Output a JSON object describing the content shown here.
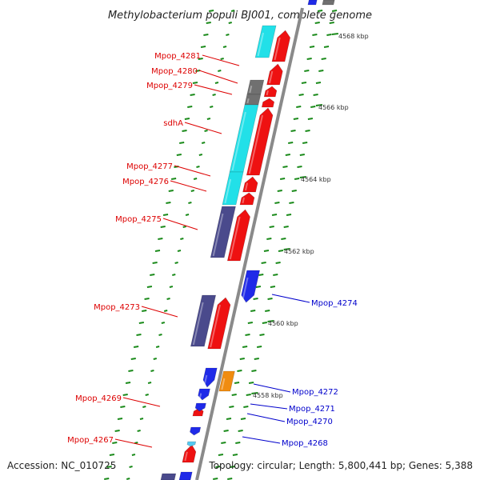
{
  "title": "Methylobacterium populi BJ001, complete genome",
  "footer": {
    "accession": "Accession: NC_010725",
    "topology": "Topology: circular; Length: 5,800,441 bp; Genes: 5,388"
  },
  "colors": {
    "forward_cds": "#ee1111",
    "reverse_cds": "#4a4a8c",
    "cyan": "#22e0e8",
    "gray": "#707070",
    "blue": "#1f2ae8",
    "orange": "#f08c10",
    "light_blue": "#55c8f0",
    "backbone": "#8a8a8a",
    "tick": "#1a8a1a",
    "label_red": "#dd0000",
    "label_blue": "#0000cc"
  },
  "scale_labels": [
    {
      "text": "4568 kbp"
    },
    {
      "text": "4566 kbp"
    },
    {
      "text": "4564 kbp"
    },
    {
      "text": "4562 kbp"
    },
    {
      "text": "4560 kbp"
    },
    {
      "text": "4558 kbp"
    }
  ],
  "gene_labels_left": [
    {
      "text": "Mpop_4281"
    },
    {
      "text": "Mpop_4280"
    },
    {
      "text": "Mpop_4279"
    },
    {
      "text": "sdhA"
    },
    {
      "text": "Mpop_4277"
    },
    {
      "text": "Mpop_4276"
    },
    {
      "text": "Mpop_4275"
    },
    {
      "text": "Mpop_4273"
    },
    {
      "text": "Mpop_4269"
    },
    {
      "text": "Mpop_4267"
    }
  ],
  "gene_labels_right": [
    {
      "text": "Mpop_4274"
    },
    {
      "text": "Mpop_4272"
    },
    {
      "text": "Mpop_4271"
    },
    {
      "text": "Mpop_4270"
    },
    {
      "text": "Mpop_4268"
    }
  ]
}
